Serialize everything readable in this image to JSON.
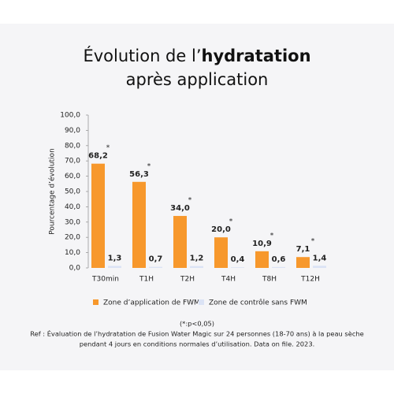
{
  "chart_data": {
    "type": "bar",
    "title": [
      "Évolution de l’",
      "hydratation",
      "après application"
    ],
    "y_label": "Pourcentage d’évolution",
    "categories": [
      "T30min",
      "T1H",
      "T2H",
      "T4H",
      "T8H",
      "T12H"
    ],
    "series": [
      {
        "name": "Zone d’application de FWM",
        "color": "#f7982c",
        "values": [
          68.2,
          56.3,
          34.0,
          20.0,
          10.9,
          7.1
        ],
        "value_labels": [
          "68,2",
          "56,3",
          "34,0",
          "20,0",
          "10,9",
          "7,1"
        ],
        "marker": "*"
      },
      {
        "name": "Zone de contrôle sans FWM",
        "color": "#dbe3f5",
        "values": [
          1.3,
          0.7,
          1.2,
          0.4,
          0.6,
          1.4
        ],
        "value_labels": [
          "1,3",
          "0,7",
          "1,2",
          "0,4",
          "0,6",
          "1,4"
        ]
      }
    ],
    "ylim": [
      0,
      100
    ],
    "yticks": [
      {
        "value": 0,
        "label": "0,0"
      },
      {
        "value": 10,
        "label": "10,0"
      },
      {
        "value": 20,
        "label": "20,0"
      },
      {
        "value": 30,
        "label": "30,0"
      },
      {
        "value": 40,
        "label": "40,0"
      },
      {
        "value": 50,
        "label": "50,0"
      },
      {
        "value": 60,
        "label": "60,0"
      },
      {
        "value": 70,
        "label": "70,0"
      },
      {
        "value": 80,
        "label": "80,0"
      },
      {
        "value": 90,
        "label": "90,0"
      },
      {
        "value": 100,
        "label": "100,0"
      }
    ],
    "grid": false,
    "footnote": "(*:p<0,05)",
    "reference": [
      "Ref : Évaluation de l’hydratation de Fusion Water Magic sur 24 personnes (18-70 ans) à la peau sèche",
      "pendant 4 jours en conditions normales d’utilisation.  Data on file. 2023."
    ]
  }
}
